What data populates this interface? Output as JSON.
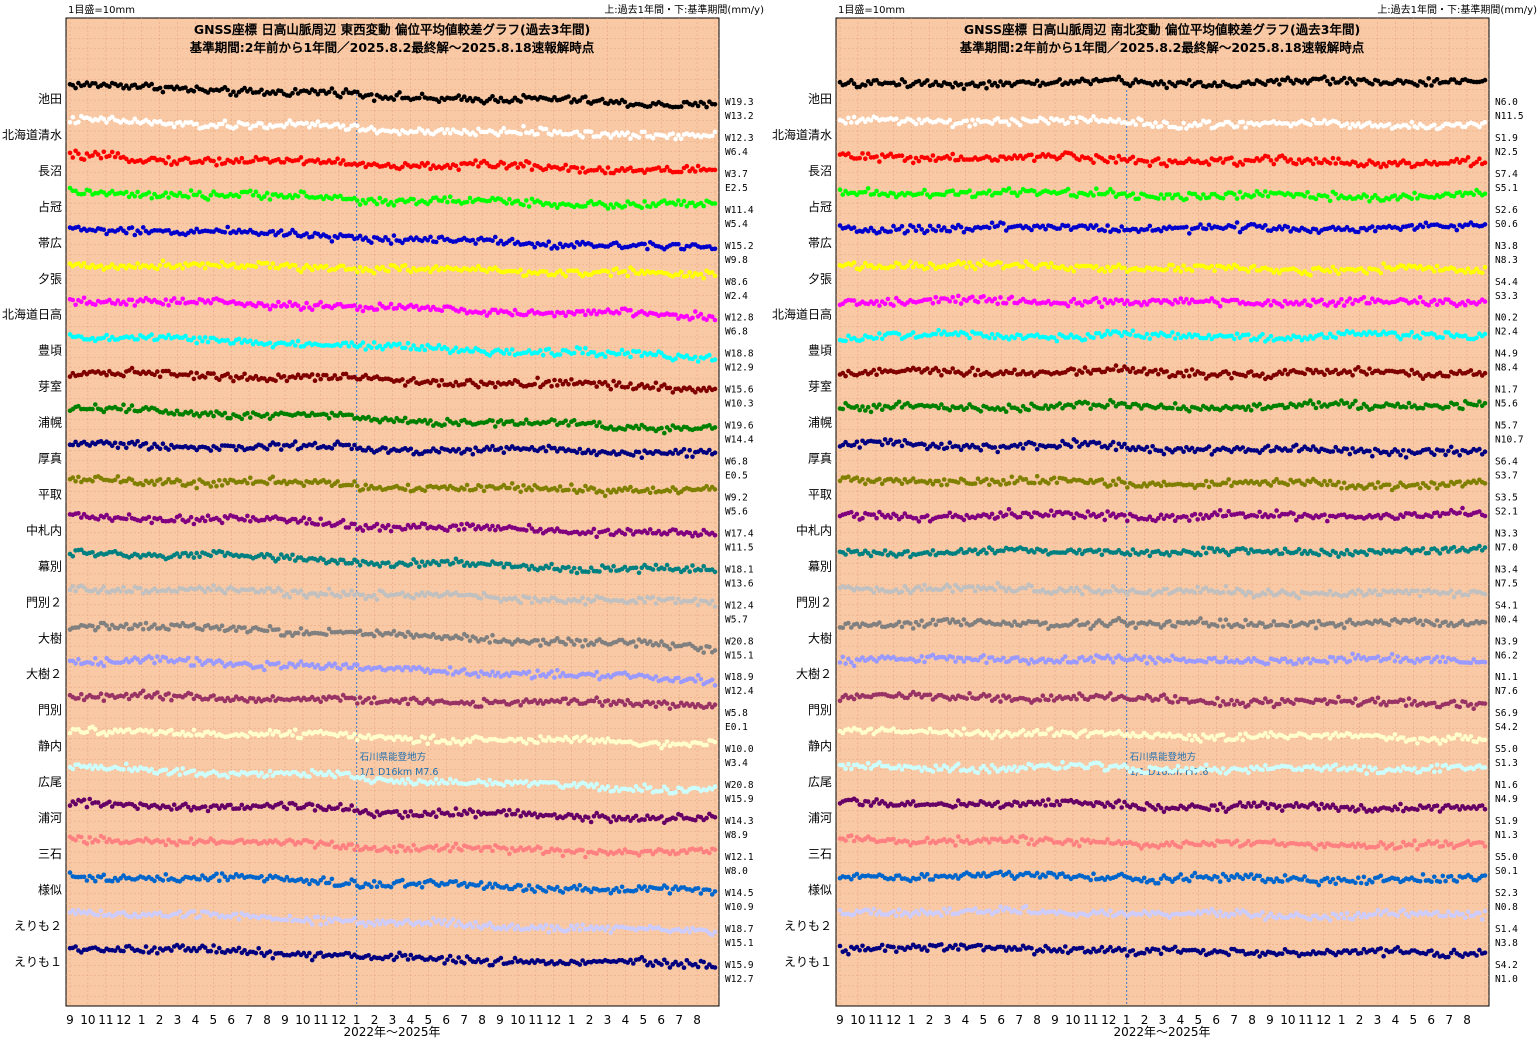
{
  "chart_data": [
    {
      "type": "scatter",
      "scale_label": "1目盛=10mm",
      "rate_note": "上:過去1年間・下:基準期間(mm/y)",
      "title": "GNSS座標 日高山脈周辺 東西変動 偏位平均値較差グラフ(過去3年間)",
      "subtitle": "基準期間:2年前から1年間／2025.8.2最終解～2025.8.18速報解時点",
      "xlabel": "2022年～2025年",
      "x_ticks": [
        "9",
        "10",
        "11",
        "12",
        "1",
        "2",
        "3",
        "4",
        "5",
        "6",
        "7",
        "8",
        "9",
        "10",
        "11",
        "12",
        "1",
        "2",
        "3",
        "4",
        "5",
        "6",
        "7",
        "8",
        "9",
        "10",
        "11",
        "12",
        "1",
        "2",
        "3",
        "4",
        "5",
        "6",
        "7",
        "8"
      ],
      "x_range": [
        "2022-09",
        "2025-08"
      ],
      "event_line": {
        "date": "2024-01-01",
        "label1": "石川県能登地方",
        "label2": "1/1 D16km M7.6"
      },
      "grid": true,
      "series": [
        {
          "name": "池田",
          "color": "#000000",
          "rates": [
            "W19.3",
            "W13.2"
          ],
          "trend": [
            0,
            -6,
            -10,
            -15
          ]
        },
        {
          "name": "北海道清水",
          "color": "#ffffff",
          "rates": [
            "W12.3",
            "W6.4"
          ],
          "trend": [
            0,
            -4,
            -8,
            -10
          ]
        },
        {
          "name": "長沼",
          "color": "#ff0000",
          "rates": [
            "W3.7",
            "E2.5"
          ],
          "trend": [
            0,
            -4,
            -6,
            -10
          ]
        },
        {
          "name": "占冠",
          "color": "#00ff00",
          "rates": [
            "W11.4",
            "W5.4"
          ],
          "trend": [
            0,
            -3,
            -6,
            -9
          ]
        },
        {
          "name": "帯広",
          "color": "#0000cc",
          "rates": [
            "W15.2",
            "W9.8"
          ],
          "trend": [
            0,
            -4,
            -9,
            -14
          ]
        },
        {
          "name": "夕張",
          "color": "#ffff00",
          "rates": [
            "W8.6",
            "W2.4"
          ],
          "trend": [
            0,
            -1,
            -3,
            -7
          ]
        },
        {
          "name": "北海道日高",
          "color": "#ff00ff",
          "rates": [
            "W12.8",
            "W6.8"
          ],
          "trend": [
            0,
            -3,
            -7,
            -11
          ]
        },
        {
          "name": "豊頃",
          "color": "#00ffff",
          "rates": [
            "W18.8",
            "W12.9"
          ],
          "trend": [
            0,
            -5,
            -10,
            -15
          ]
        },
        {
          "name": "芽室",
          "color": "#800000",
          "rates": [
            "W15.6",
            "W10.3"
          ],
          "trend": [
            0,
            -3,
            -7,
            -11
          ]
        },
        {
          "name": "浦幌",
          "color": "#008000",
          "rates": [
            "W19.6",
            "W14.4"
          ],
          "trend": [
            0,
            -5,
            -10,
            -15
          ]
        },
        {
          "name": "厚真",
          "color": "#000080",
          "rates": [
            "W6.8",
            "E0.5"
          ],
          "trend": [
            0,
            -2,
            -3,
            -5
          ]
        },
        {
          "name": "平取",
          "color": "#808000",
          "rates": [
            "W9.2",
            "W5.6"
          ],
          "trend": [
            0,
            -2,
            -5,
            -7
          ]
        },
        {
          "name": "中札内",
          "color": "#800080",
          "rates": [
            "W17.4",
            "W11.5"
          ],
          "trend": [
            0,
            -4,
            -9,
            -13
          ]
        },
        {
          "name": "幕別",
          "color": "#008080",
          "rates": [
            "W18.1",
            "W13.6"
          ],
          "trend": [
            0,
            -5,
            -9,
            -14
          ]
        },
        {
          "name": "門別２",
          "color": "#c0c0c0",
          "rates": [
            "W12.4",
            "W5.7"
          ],
          "trend": [
            0,
            -3,
            -6,
            -10
          ]
        },
        {
          "name": "大樹",
          "color": "#808080",
          "rates": [
            "W20.8",
            "W15.1"
          ],
          "trend": [
            0,
            -5,
            -11,
            -17
          ]
        },
        {
          "name": "大樹２",
          "color": "#9999ff",
          "rates": [
            "W18.9",
            "W12.4"
          ],
          "trend": [
            0,
            -4,
            -9,
            -14
          ]
        },
        {
          "name": "門別",
          "color": "#993366",
          "rates": [
            "W5.8",
            "E0.1"
          ],
          "trend": [
            0,
            -2,
            -3,
            -5
          ]
        },
        {
          "name": "静内",
          "color": "#ffffcc",
          "rates": [
            "W10.0",
            "W3.4"
          ],
          "trend": [
            0,
            -2,
            -5,
            -8
          ]
        },
        {
          "name": "広尾",
          "color": "#ccffff",
          "rates": [
            "W20.8",
            "W15.9"
          ],
          "trend": [
            0,
            -5,
            -11,
            -17
          ]
        },
        {
          "name": "浦河",
          "color": "#660066",
          "rates": [
            "W14.3",
            "W8.9"
          ],
          "trend": [
            0,
            -3,
            -7,
            -11
          ]
        },
        {
          "name": "三石",
          "color": "#ff8080",
          "rates": [
            "W12.1",
            "W8.0"
          ],
          "trend": [
            0,
            -3,
            -6,
            -9
          ]
        },
        {
          "name": "様似",
          "color": "#0066cc",
          "rates": [
            "W14.5",
            "W10.9"
          ],
          "trend": [
            0,
            -3,
            -7,
            -11
          ]
        },
        {
          "name": "えりも２",
          "color": "#ccccff",
          "rates": [
            "W18.7",
            "W15.1"
          ],
          "trend": [
            0,
            -5,
            -10,
            -15
          ]
        },
        {
          "name": "えりも１",
          "color": "#000080",
          "rates": [
            "W15.9",
            "W12.7"
          ],
          "trend": [
            0,
            -4,
            -9,
            -12
          ]
        }
      ]
    },
    {
      "type": "scatter",
      "scale_label": "1目盛=10mm",
      "rate_note": "上:過去1年間・下:基準期間(mm/y)",
      "title": "GNSS座標 日高山脈周辺 南北変動 偏位平均値較差グラフ(過去3年間)",
      "subtitle": "基準期間:2年前から1年間／2025.8.2最終解～2025.8.18速報解時点",
      "xlabel": "2022年～2025年",
      "x_ticks": [
        "9",
        "10",
        "11",
        "12",
        "1",
        "2",
        "3",
        "4",
        "5",
        "6",
        "7",
        "8",
        "9",
        "10",
        "11",
        "12",
        "1",
        "2",
        "3",
        "4",
        "5",
        "6",
        "7",
        "8",
        "9",
        "10",
        "11",
        "12",
        "1",
        "2",
        "3",
        "4",
        "5",
        "6",
        "7",
        "8"
      ],
      "x_range": [
        "2022-09",
        "2025-08"
      ],
      "event_line": {
        "date": "2024-01-01",
        "label1": "石川県能登地方",
        "label2": "1/1 D16km M7.6"
      },
      "grid": true,
      "series": [
        {
          "name": "池田",
          "color": "#000000",
          "rates": [
            "N6.0",
            "N11.5"
          ],
          "trend": [
            0,
            2,
            4,
            5
          ]
        },
        {
          "name": "北海道清水",
          "color": "#ffffff",
          "rates": [
            "S1.9",
            "N2.5"
          ],
          "trend": [
            0,
            0,
            -1,
            -2
          ]
        },
        {
          "name": "長沼",
          "color": "#ff0000",
          "rates": [
            "S7.4",
            "S5.1"
          ],
          "trend": [
            0,
            -1,
            -2,
            -4
          ]
        },
        {
          "name": "占冠",
          "color": "#00ff00",
          "rates": [
            "S2.6",
            "S0.6"
          ],
          "trend": [
            0,
            0,
            -1,
            -1
          ]
        },
        {
          "name": "帯広",
          "color": "#0000cc",
          "rates": [
            "N3.8",
            "N8.3"
          ],
          "trend": [
            0,
            1,
            2,
            3
          ]
        },
        {
          "name": "夕張",
          "color": "#ffff00",
          "rates": [
            "S4.4",
            "S3.3"
          ],
          "trend": [
            0,
            -1,
            -2,
            -3
          ]
        },
        {
          "name": "北海道日高",
          "color": "#ff00ff",
          "rates": [
            "N0.2",
            "N2.4"
          ],
          "trend": [
            0,
            0,
            0,
            1
          ]
        },
        {
          "name": "豊頃",
          "color": "#00ffff",
          "rates": [
            "N4.9",
            "N8.4"
          ],
          "trend": [
            0,
            1,
            2,
            3
          ]
        },
        {
          "name": "芽室",
          "color": "#800000",
          "rates": [
            "N1.7",
            "N5.6"
          ],
          "trend": [
            0,
            1,
            1,
            2
          ]
        },
        {
          "name": "浦幌",
          "color": "#008000",
          "rates": [
            "N5.7",
            "N10.7"
          ],
          "trend": [
            0,
            2,
            3,
            5
          ]
        },
        {
          "name": "厚真",
          "color": "#000080",
          "rates": [
            "S6.4",
            "S3.7"
          ],
          "trend": [
            0,
            -1,
            -3,
            -4
          ]
        },
        {
          "name": "平取",
          "color": "#808000",
          "rates": [
            "S3.5",
            "S2.1"
          ],
          "trend": [
            0,
            -1,
            -1,
            -2
          ]
        },
        {
          "name": "中札内",
          "color": "#800080",
          "rates": [
            "N3.3",
            "N7.0"
          ],
          "trend": [
            0,
            1,
            2,
            3
          ]
        },
        {
          "name": "幕別",
          "color": "#008080",
          "rates": [
            "N3.4",
            "N7.5"
          ],
          "trend": [
            0,
            1,
            2,
            3
          ]
        },
        {
          "name": "門別２",
          "color": "#c0c0c0",
          "rates": [
            "S4.1",
            "N0.4"
          ],
          "trend": [
            0,
            -1,
            -2,
            -3
          ]
        },
        {
          "name": "大樹",
          "color": "#808080",
          "rates": [
            "N3.9",
            "N6.2"
          ],
          "trend": [
            0,
            1,
            2,
            3
          ]
        },
        {
          "name": "大樹２",
          "color": "#9999ff",
          "rates": [
            "N1.1",
            "N7.6"
          ],
          "trend": [
            0,
            1,
            2,
            2
          ]
        },
        {
          "name": "門別",
          "color": "#993366",
          "rates": [
            "S6.9",
            "S4.2"
          ],
          "trend": [
            0,
            -1,
            -3,
            -4
          ]
        },
        {
          "name": "静内",
          "color": "#ffffcc",
          "rates": [
            "S5.0",
            "S1.3"
          ],
          "trend": [
            0,
            -1,
            -2,
            -3
          ]
        },
        {
          "name": "広尾",
          "color": "#ccffff",
          "rates": [
            "N1.6",
            "N4.9"
          ],
          "trend": [
            0,
            1,
            1,
            2
          ]
        },
        {
          "name": "浦河",
          "color": "#660066",
          "rates": [
            "S1.9",
            "N1.3"
          ],
          "trend": [
            0,
            0,
            -1,
            -1
          ]
        },
        {
          "name": "三石",
          "color": "#ff8080",
          "rates": [
            "S5.0",
            "S0.1"
          ],
          "trend": [
            0,
            -1,
            -2,
            -3
          ]
        },
        {
          "name": "様似",
          "color": "#0066cc",
          "rates": [
            "S2.3",
            "N0.8"
          ],
          "trend": [
            0,
            0,
            -1,
            -1
          ]
        },
        {
          "name": "えりも２",
          "color": "#ccccff",
          "rates": [
            "S1.4",
            "N3.8"
          ],
          "trend": [
            0,
            0,
            -1,
            -1
          ]
        },
        {
          "name": "えりも１",
          "color": "#000080",
          "rates": [
            "S4.2",
            "N1.0"
          ],
          "trend": [
            0,
            -1,
            -2,
            -3
          ]
        }
      ]
    }
  ]
}
